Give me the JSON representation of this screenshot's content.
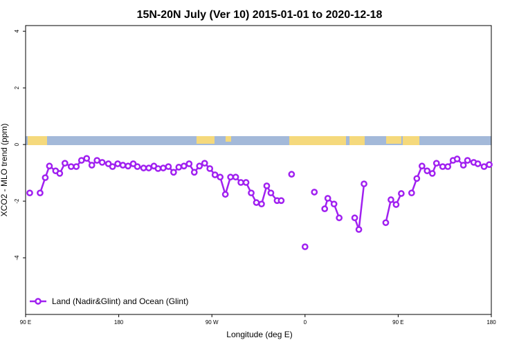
{
  "chart_data": {
    "type": "line",
    "title": "15N-20N July (Ver 10)   2015-01-01 to 2020-12-18",
    "x_label": "Longitude (deg E)",
    "y_label": "XCO2 - MLO trend (ppm)",
    "x": [
      94,
      99,
      104,
      109,
      113,
      119,
      123,
      128,
      134,
      139,
      144,
      149,
      154,
      159,
      164,
      170,
      174,
      179,
      184,
      189,
      194,
      198,
      204,
      209,
      214,
      218,
      223,
      228,
      233,
      238,
      243,
      248,
      253,
      258,
      263,
      268,
      273,
      278,
      283,
      288,
      293,
      298,
      303,
      308,
      313,
      318,
      323,
      327,
      333,
      337,
      342,
      347,
      352,
      360,
      364,
      369,
      374,
      379,
      382,
      388,
      393,
      400,
      408,
      412,
      417,
      428,
      438,
      443,
      448,
      453,
      458,
      463,
      468,
      473,
      478,
      483,
      487,
      493,
      498,
      503,
      507,
      513,
      517,
      523,
      527,
      533,
      538
    ],
    "series": [
      {
        "name": "Land (Nadir&Glint) and Ocean (Glint)",
        "color": "#a020f0",
        "values": [
          -1.71,
          null,
          -1.71,
          -1.17,
          -0.76,
          -0.93,
          -1.02,
          -0.66,
          -0.78,
          -0.78,
          -0.56,
          -0.49,
          -0.73,
          -0.56,
          -0.63,
          -0.68,
          -0.78,
          -0.68,
          -0.73,
          -0.76,
          -0.68,
          -0.78,
          -0.83,
          -0.83,
          -0.76,
          -0.85,
          -0.83,
          -0.78,
          -0.98,
          -0.8,
          -0.76,
          -0.68,
          -0.98,
          -0.76,
          -0.66,
          -0.85,
          -1.07,
          -1.15,
          -1.76,
          -1.15,
          -1.15,
          -1.34,
          -1.34,
          -1.71,
          -2.05,
          -2.1,
          -1.46,
          -1.71,
          -1.98,
          -1.98,
          null,
          -1.05,
          null,
          -3.61,
          null,
          -1.68,
          null,
          -2.27,
          -1.9,
          -2.1,
          -2.59,
          null,
          -2.59,
          -3.0,
          -1.39,
          null,
          -2.76,
          -1.95,
          -2.12,
          -1.73,
          null,
          -1.71,
          -1.2,
          -0.76,
          -0.93,
          -1.02,
          -0.66,
          -0.78,
          -0.78,
          -0.56,
          -0.51,
          -0.73,
          -0.56,
          -0.63,
          -0.68,
          -0.78,
          -0.71
        ]
      }
    ],
    "xlim": [
      90,
      540
    ],
    "xticks": [
      {
        "value": 90,
        "label": "90 E"
      },
      180,
      {
        "value": 270,
        "label": "90 W"
      },
      {
        "value": 360,
        "label": "0"
      },
      {
        "value": 450,
        "label": "90 E"
      },
      {
        "value": 540,
        "label": "180"
      }
    ],
    "ylim": [
      -6,
      4.2
    ],
    "yticks": [
      -4,
      -2,
      0,
      2,
      4
    ],
    "legend": "bottom-left"
  }
}
